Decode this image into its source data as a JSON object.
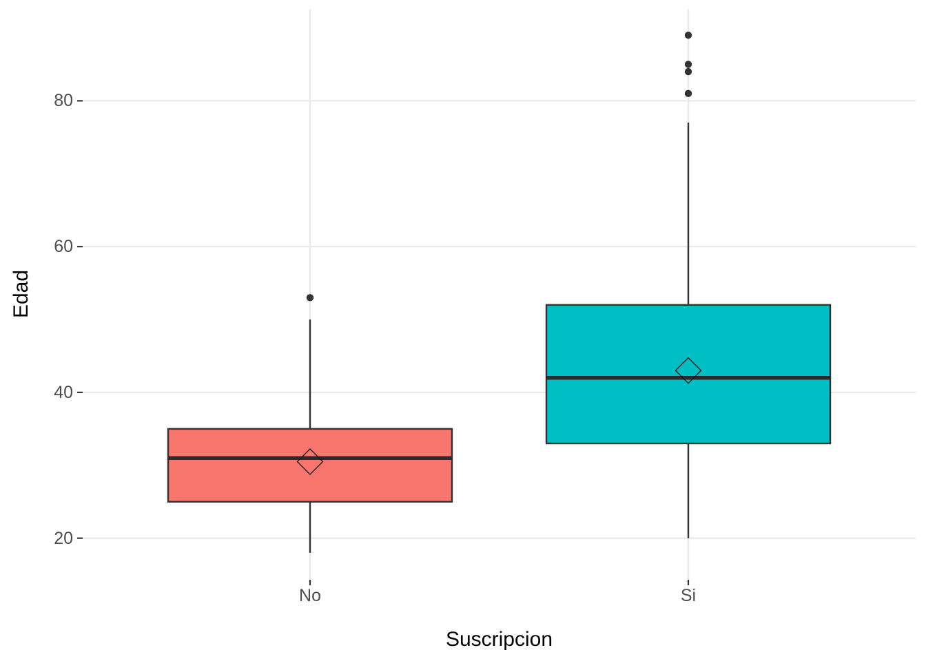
{
  "chart_data": {
    "type": "boxplot",
    "title": "",
    "xlabel": "Suscripcion",
    "ylabel": "Edad",
    "categories": [
      "No",
      "Si"
    ],
    "y_axis": {
      "ticks": [
        20,
        40,
        60,
        80
      ],
      "domain": [
        14.3,
        92.6
      ],
      "grid": "major-horizontal"
    },
    "x_axis": {
      "grid_at_categories": true
    },
    "legend": "none",
    "mean_marker": "open-diamond",
    "series": [
      {
        "category": "No",
        "fill": "#F8766D",
        "whisker_low": 18,
        "q1": 25,
        "median": 31,
        "q3": 35,
        "whisker_high": 50,
        "mean": 30.5,
        "outliers": [
          53
        ]
      },
      {
        "category": "Si",
        "fill": "#00BFC4",
        "whisker_low": 20,
        "q1": 33,
        "median": 42,
        "q3": 52,
        "whisker_high": 77,
        "mean": 43,
        "outliers": [
          81,
          84,
          85,
          89
        ]
      }
    ],
    "colors": {
      "background": "#FFFFFF",
      "grid": "#EBEBEB",
      "box_stroke": "#333333",
      "median_stroke": "#2B2B2B",
      "whisker_stroke": "#333333",
      "outlier_fill": "#333333",
      "mean_marker_stroke": "#1A1A1A",
      "tick_mark": "#333333",
      "tick_label": "#4D4D4D",
      "axis_title": "#000000"
    }
  }
}
